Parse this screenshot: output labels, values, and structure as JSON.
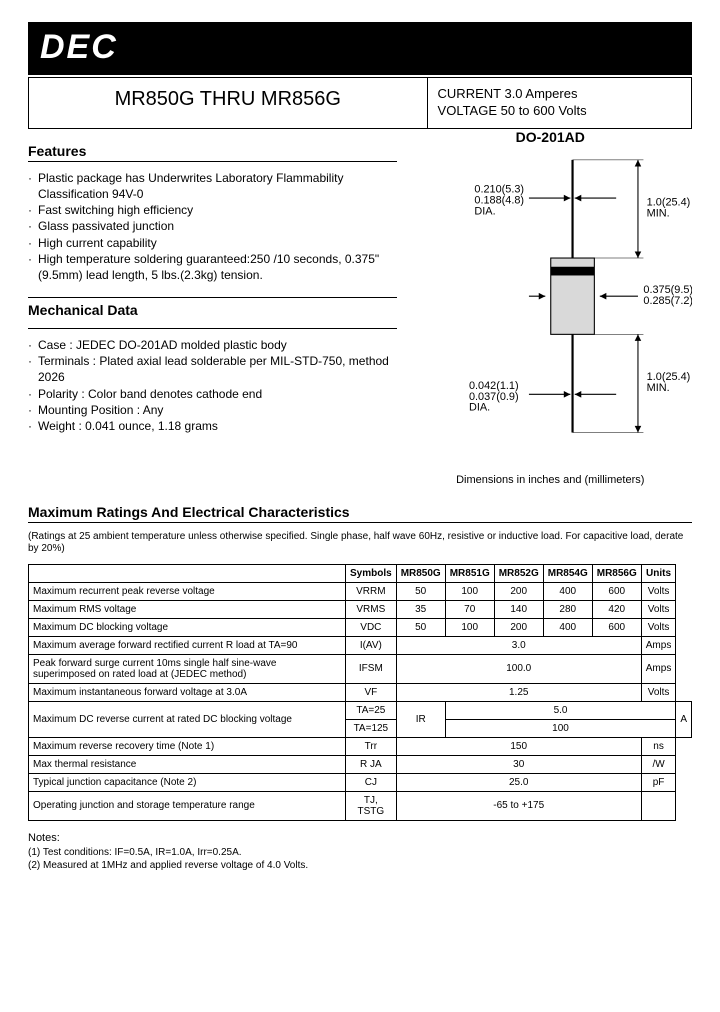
{
  "brand": "DEC",
  "title": "MR850G THRU MR856G",
  "spec1": "CURRENT 3.0 Amperes",
  "spec2": "VOLTAGE  50 to 600 Volts",
  "features_head": "Features",
  "features": [
    "Plastic package has Underwrites Laboratory Flammability Classification 94V-0",
    "Fast switching high efficiency",
    "Glass passivated junction",
    "High current capability",
    "High temperature soldering guaranteed:250    /10 seconds, 0.375\"(9.5mm) lead length, 5 lbs.(2.3kg) tension."
  ],
  "mech_head": "Mechanical Data",
  "mech": [
    "Case : JEDEC DO-201AD molded plastic body",
    "Terminals : Plated axial lead solderable per MIL-STD-750, method 2026",
    "Polarity : Color band denotes cathode end",
    "Mounting Position : Any",
    "Weight : 0.041 ounce, 1.18 grams"
  ],
  "package_name": "DO-201AD",
  "diag": {
    "lead_dia": "0.210(5.3)\n0.188(4.8)\nDIA.",
    "lead_len": "1.0(25.4)\nMIN.",
    "body_dia": "0.375(9.5)\n0.285(7.2)",
    "body_end_dia": "0.042(1.1)\n0.037(0.9)\nDIA.",
    "lead_len2": "1.0(25.4)\nMIN.",
    "caption": "Dimensions in inches and (millimeters)"
  },
  "ratings_head": "Maximum Ratings And Electrical Characteristics",
  "ratings_note": "(Ratings at 25    ambient temperature unless otherwise specified. Single phase, half wave 60Hz, resistive or inductive load. For capacitive load, derate by 20%)",
  "table": {
    "cols": [
      "",
      "Symbols",
      "MR850G",
      "MR851G",
      "MR852G",
      "MR854G",
      "MR856G",
      "Units"
    ],
    "rows": [
      {
        "param": "Maximum recurrent peak reverse voltage",
        "sym": "VRRM",
        "v": [
          "50",
          "100",
          "200",
          "400",
          "600"
        ],
        "unit": "Volts"
      },
      {
        "param": "Maximum RMS voltage",
        "sym": "VRMS",
        "v": [
          "35",
          "70",
          "140",
          "280",
          "420"
        ],
        "unit": "Volts"
      },
      {
        "param": "Maximum DC blocking voltage",
        "sym": "VDC",
        "v": [
          "50",
          "100",
          "200",
          "400",
          "600"
        ],
        "unit": "Volts"
      },
      {
        "param": "Maximum average forward rectified current R load at TA=90",
        "sym": "I(AV)",
        "span": "3.0",
        "unit": "Amps"
      },
      {
        "param": "Peak forward surge current 10ms single half sine-wave superimposed on rated load at (JEDEC method)",
        "sym": "IFSM",
        "span": "100.0",
        "unit": "Amps"
      },
      {
        "param": "Maximum instantaneous forward voltage at 3.0A",
        "sym": "VF",
        "span": "1.25",
        "unit": "Volts"
      },
      {
        "param": "Maximum DC reverse current at rated DC blocking voltage",
        "sub": [
          {
            "c": "TA=25",
            "v": "5.0"
          },
          {
            "c": "TA=125",
            "v": "100"
          }
        ],
        "sym": "IR",
        "unit": "A"
      },
      {
        "param": "Maximum reverse recovery time (Note 1)",
        "sym": "Trr",
        "span": "150",
        "unit": "ns"
      },
      {
        "param": "Max thermal resistance",
        "sym": "R JA",
        "span": "30",
        "unit": "/W"
      },
      {
        "param": "Typical junction capacitance (Note 2)",
        "sym": "CJ",
        "span": "25.0",
        "unit": "pF"
      },
      {
        "param": "Operating junction and storage temperature range",
        "sym": "TJ,\nTSTG",
        "span": "-65 to +175",
        "unit": ""
      }
    ]
  },
  "notes_head": "Notes:",
  "notes": [
    "(1) Test conditions: IF=0.5A, IR=1.0A, Irr=0.25A.",
    "(2) Measured at 1MHz and applied reverse voltage of 4.0 Volts."
  ]
}
